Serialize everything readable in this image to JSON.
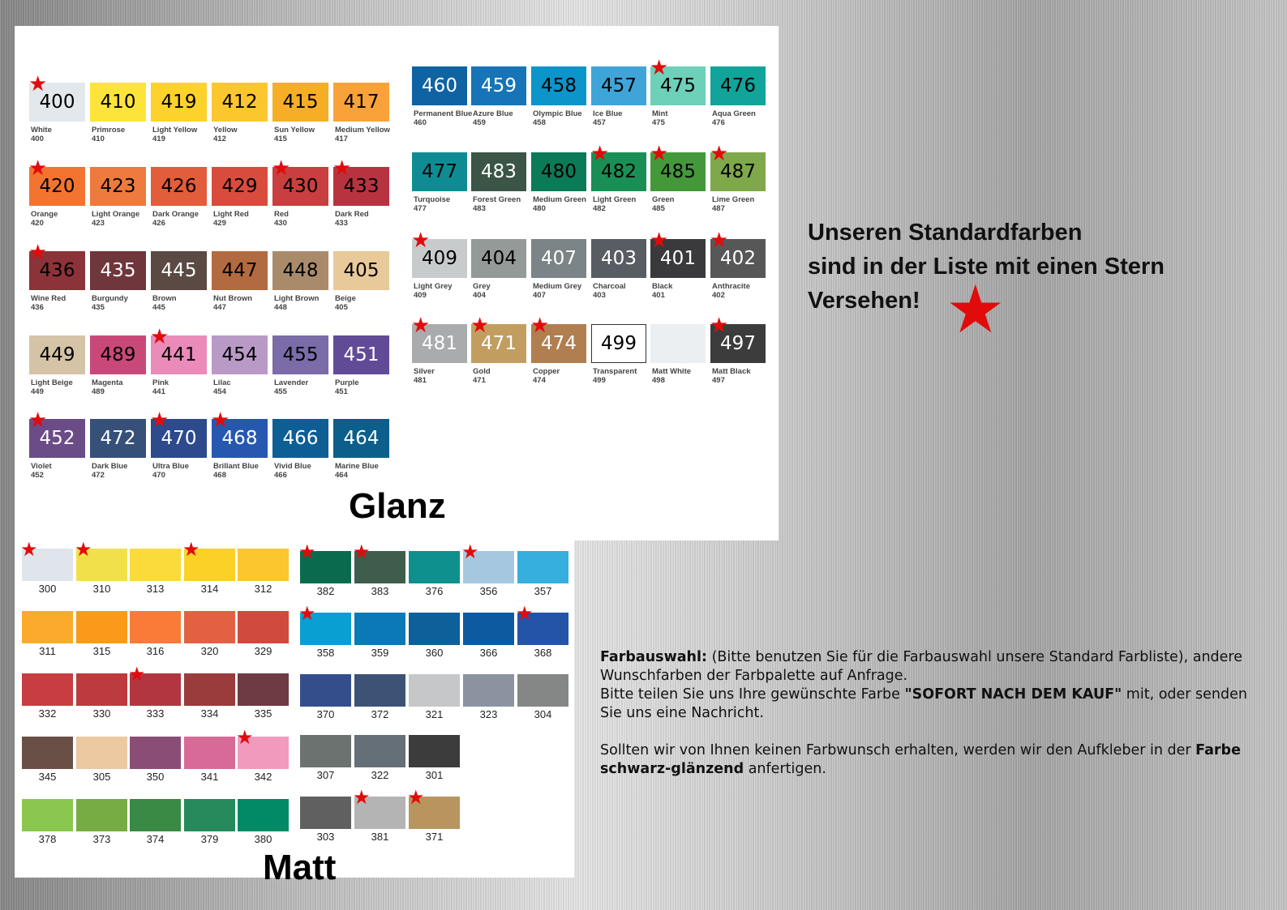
{
  "glanz": {
    "title": "Glanz",
    "left": [
      {
        "code": "400",
        "name": "White",
        "color": "#e3e8ec",
        "text": "#000",
        "star": true
      },
      {
        "code": "410",
        "name": "Primrose",
        "color": "#fde43a",
        "text": "#000"
      },
      {
        "code": "419",
        "name": "Light Yellow",
        "color": "#fdd22a",
        "text": "#000"
      },
      {
        "code": "412",
        "name": "Yellow",
        "color": "#fcc72e",
        "text": "#000"
      },
      {
        "code": "415",
        "name": "Sun Yellow",
        "color": "#f5ae25",
        "text": "#000"
      },
      {
        "code": "417",
        "name": "Medium Yellow",
        "color": "#f9a23a",
        "text": "#000"
      },
      {
        "code": "420",
        "name": "Orange",
        "color": "#f27430",
        "text": "#000",
        "star": true
      },
      {
        "code": "423",
        "name": "Light Orange",
        "color": "#ef7a3d",
        "text": "#000"
      },
      {
        "code": "426",
        "name": "Dark Orange",
        "color": "#e25d3b",
        "text": "#000"
      },
      {
        "code": "429",
        "name": "Light Red",
        "color": "#d94c3d",
        "text": "#000"
      },
      {
        "code": "430",
        "name": "Red",
        "color": "#c93e3e",
        "text": "#000",
        "star": true
      },
      {
        "code": "433",
        "name": "Dark Red",
        "color": "#b83340",
        "text": "#000",
        "star": true
      },
      {
        "code": "436",
        "name": "Wine Red",
        "color": "#8b3338",
        "text": "#000",
        "star": true
      },
      {
        "code": "435",
        "name": "Burgundy",
        "color": "#6f363c",
        "text": "#fff"
      },
      {
        "code": "445",
        "name": "Brown",
        "color": "#5a4a43",
        "text": "#fff"
      },
      {
        "code": "447",
        "name": "Nut Brown",
        "color": "#b26a41",
        "text": "#000"
      },
      {
        "code": "448",
        "name": "Light Brown",
        "color": "#a98b6c",
        "text": "#000"
      },
      {
        "code": "405",
        "name": "Beige",
        "color": "#e8c99a",
        "text": "#000"
      },
      {
        "code": "449",
        "name": "Light Beige",
        "color": "#d4c3a6",
        "text": "#000"
      },
      {
        "code": "489",
        "name": "Magenta",
        "color": "#c9487a",
        "text": "#000"
      },
      {
        "code": "441",
        "name": "Pink",
        "color": "#ea8bb9",
        "text": "#000",
        "star": true
      },
      {
        "code": "454",
        "name": "Lilac",
        "color": "#b99ac6",
        "text": "#000"
      },
      {
        "code": "455",
        "name": "Lavender",
        "color": "#7b6ba8",
        "text": "#000"
      },
      {
        "code": "451",
        "name": "Purple",
        "color": "#614b97",
        "text": "#fff"
      },
      {
        "code": "452",
        "name": "Violet",
        "color": "#6b4c86",
        "text": "#fff",
        "star": true
      },
      {
        "code": "472",
        "name": "Dark Blue",
        "color": "#36507a",
        "text": "#fff"
      },
      {
        "code": "470",
        "name": "Ultra Blue",
        "color": "#2c4a8c",
        "text": "#fff",
        "star": true
      },
      {
        "code": "468",
        "name": "Brillant Blue",
        "color": "#2758b0",
        "text": "#fff",
        "star": true
      },
      {
        "code": "466",
        "name": "Vivid Blue",
        "color": "#0e5e96",
        "text": "#fff"
      },
      {
        "code": "464",
        "name": "Marine Blue",
        "color": "#0c5f8a",
        "text": "#fff"
      }
    ],
    "right": [
      {
        "code": "460",
        "name": "Permanent Blue",
        "color": "#0f63a3",
        "text": "#fff"
      },
      {
        "code": "459",
        "name": "Azure Blue",
        "color": "#1774b6",
        "text": "#fff"
      },
      {
        "code": "458",
        "name": "Olympic Blue",
        "color": "#0b95c9",
        "text": "#000"
      },
      {
        "code": "457",
        "name": "Ice Blue",
        "color": "#3fa5d8",
        "text": "#000"
      },
      {
        "code": "475",
        "name": "Mint",
        "color": "#6dd0b8",
        "text": "#000",
        "star": true
      },
      {
        "code": "476",
        "name": "Aqua Green",
        "color": "#12a49a",
        "text": "#000"
      },
      {
        "code": "477",
        "name": "Turquoise",
        "color": "#0f8c93",
        "text": "#000"
      },
      {
        "code": "483",
        "name": "Forest Green",
        "color": "#3b5547",
        "text": "#fff"
      },
      {
        "code": "480",
        "name": "Medium Green",
        "color": "#0b7a57",
        "text": "#000"
      },
      {
        "code": "482",
        "name": "Light Green",
        "color": "#1a8f55",
        "text": "#000",
        "star": true
      },
      {
        "code": "485",
        "name": "Green",
        "color": "#43993a",
        "text": "#000",
        "star": true
      },
      {
        "code": "487",
        "name": "Lime Green",
        "color": "#7fa84a",
        "text": "#000",
        "star": true
      },
      {
        "code": "409",
        "name": "Light Grey",
        "color": "#c8cbcc",
        "text": "#000",
        "star": true
      },
      {
        "code": "404",
        "name": "Grey",
        "color": "#949a98",
        "text": "#000"
      },
      {
        "code": "407",
        "name": "Medium Grey",
        "color": "#7b8486",
        "text": "#fff"
      },
      {
        "code": "403",
        "name": "Charcoal",
        "color": "#575d62",
        "text": "#fff"
      },
      {
        "code": "401",
        "name": "Black",
        "color": "#3a3a3c",
        "text": "#fff",
        "star": true
      },
      {
        "code": "402",
        "name": "Anthracite",
        "color": "#575757",
        "text": "#fff",
        "star": true
      },
      {
        "code": "481",
        "name": "Silver",
        "color": "#a9abac",
        "text": "#fff",
        "star": true
      },
      {
        "code": "471",
        "name": "Gold",
        "color": "#c19e60",
        "text": "#fff",
        "star": true
      },
      {
        "code": "474",
        "name": "Copper",
        "color": "#b07e4f",
        "text": "#fff",
        "star": true
      },
      {
        "code": "499",
        "name": "Transparent",
        "color": "#ffffff",
        "text": "#000",
        "border": true
      },
      {
        "code": "498",
        "name": "Matt White",
        "color": "#eceff1",
        "text": "#000",
        "hide_num": true
      },
      {
        "code": "497",
        "name": "Matt Black",
        "color": "#3c3c3c",
        "text": "#fff",
        "star": true
      }
    ]
  },
  "matt": {
    "title": "Matt",
    "left": [
      [
        {
          "code": "300",
          "color": "#dfe5ea",
          "star": true
        },
        {
          "code": "310",
          "color": "#f2e04a",
          "star": true
        },
        {
          "code": "313",
          "color": "#fbdb39"
        },
        {
          "code": "314",
          "color": "#fbd127",
          "star": true
        },
        {
          "code": "312",
          "color": "#fcc62d"
        }
      ],
      [
        {
          "code": "311",
          "color": "#fbaa2c"
        },
        {
          "code": "315",
          "color": "#f99a1a"
        },
        {
          "code": "316",
          "color": "#f97b37"
        },
        {
          "code": "320",
          "color": "#e36143"
        },
        {
          "code": "329",
          "color": "#cf4b3d"
        }
      ],
      [
        {
          "code": "332",
          "color": "#c73d42"
        },
        {
          "code": "330",
          "color": "#bd3a3f"
        },
        {
          "code": "333",
          "color": "#b1363f",
          "star": true
        },
        {
          "code": "334",
          "color": "#9a3b3c"
        },
        {
          "code": "335",
          "color": "#6e3a44"
        }
      ],
      [
        {
          "code": "345",
          "color": "#6a4f47"
        },
        {
          "code": "305",
          "color": "#ecc9a0"
        },
        {
          "code": "350",
          "color": "#8a4e76"
        },
        {
          "code": "341",
          "color": "#d86a97"
        },
        {
          "code": "342",
          "color": "#f09abe",
          "star": true
        }
      ],
      [
        {
          "code": "378",
          "color": "#8bc74f"
        },
        {
          "code": "373",
          "color": "#77ac45"
        },
        {
          "code": "374",
          "color": "#3a8a45"
        },
        {
          "code": "379",
          "color": "#268a5c"
        },
        {
          "code": "380",
          "color": "#028965"
        }
      ]
    ],
    "right": [
      [
        {
          "code": "382",
          "color": "#0a6a4e",
          "star": true
        },
        {
          "code": "383",
          "color": "#3e5d4c",
          "star": true
        },
        {
          "code": "376",
          "color": "#0e918e"
        },
        {
          "code": "356",
          "color": "#a5c8e0",
          "star": true
        },
        {
          "code": "357",
          "color": "#36afde"
        }
      ],
      [
        {
          "code": "358",
          "color": "#099fd3",
          "star": true
        },
        {
          "code": "359",
          "color": "#0a79b5"
        },
        {
          "code": "360",
          "color": "#0d6099"
        },
        {
          "code": "366",
          "color": "#0e5aa0"
        },
        {
          "code": "368",
          "color": "#2454a8",
          "star": true
        }
      ],
      [
        {
          "code": "370",
          "color": "#344e8b"
        },
        {
          "code": "372",
          "color": "#3d5275"
        },
        {
          "code": "321",
          "color": "#c6c7c8"
        },
        {
          "code": "323",
          "color": "#8b93a0"
        },
        {
          "code": "304",
          "color": "#858787"
        }
      ],
      [
        {
          "code": "307",
          "color": "#6b7270"
        },
        {
          "code": "322",
          "color": "#656f77"
        },
        {
          "code": "301",
          "color": "#3c3c3c"
        }
      ],
      [
        {
          "code": "303",
          "color": "#606060"
        },
        {
          "code": "381",
          "color": "#b4b4b4",
          "star": true
        },
        {
          "code": "371",
          "color": "#b8955e",
          "star": true
        }
      ]
    ]
  },
  "headline": {
    "line1": "Unseren Standardfarben",
    "line2": "sind in der Liste mit einen Stern",
    "line3": "Versehen!"
  },
  "star_color": "#e10b0b",
  "info": {
    "label": "Farbauswahl:",
    "p1": " (Bitte benutzen Sie für die Farbauswahl unsere Standard Farbliste), andere Wunschfarben der Farbpalette auf Anfrage.",
    "p2a": "Bitte teilen Sie uns Ihre gewünschte Farbe ",
    "p2b": "\"SOFORT NACH DEM KAUF\"",
    "p2c": " mit, oder senden Sie uns eine Nachricht.",
    "p3a": "Sollten wir von Ihnen keinen Farbwunsch erhalten, werden wir den Aufkleber in der ",
    "p3b": "Farbe schwarz-glänzend",
    "p3c": " anfertigen."
  }
}
